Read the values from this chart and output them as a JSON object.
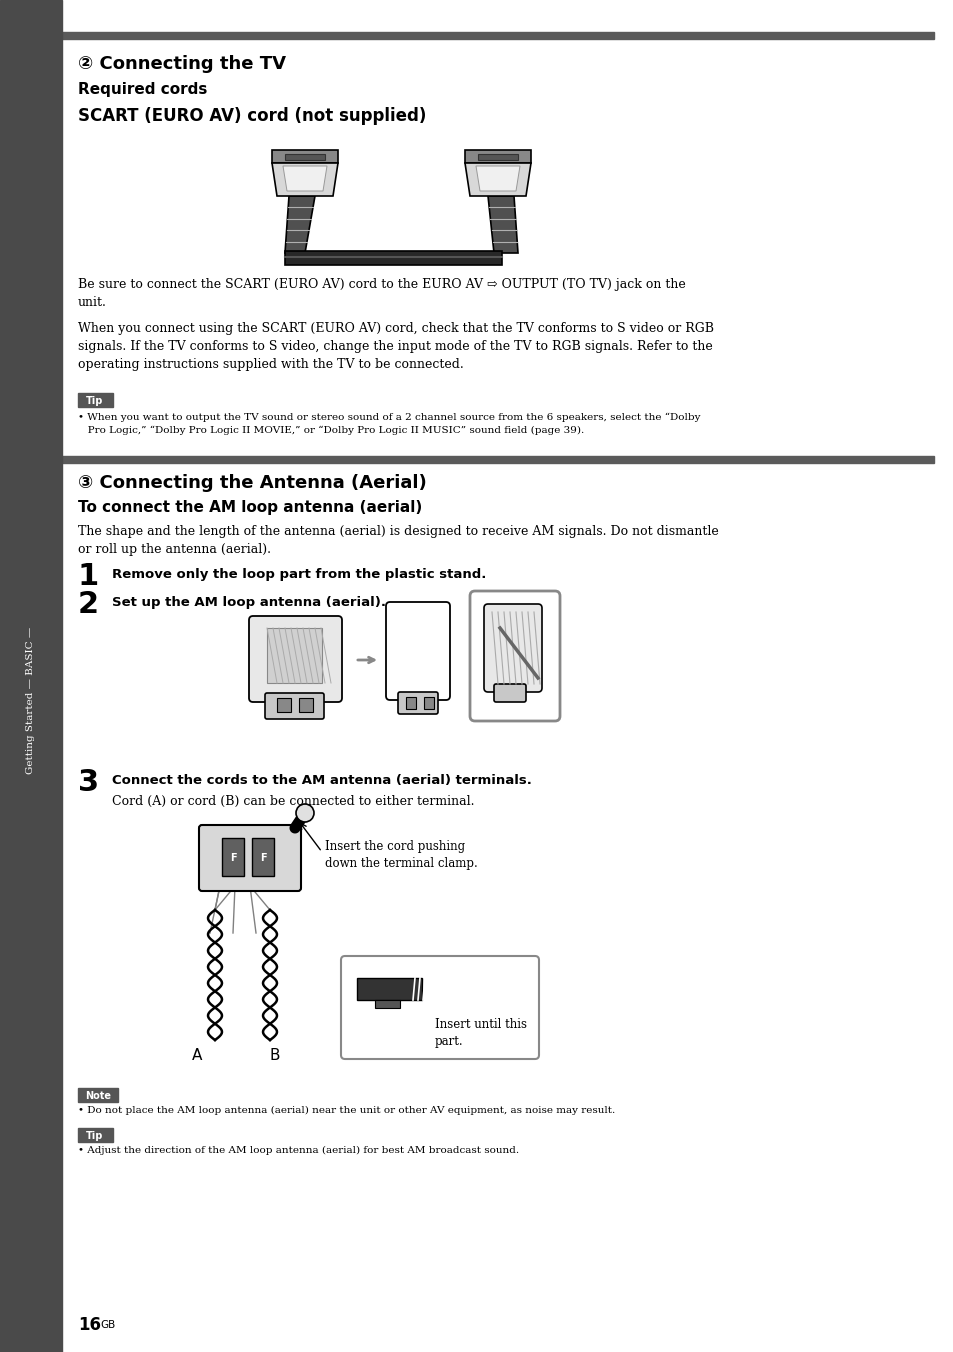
{
  "bg_color": "#ffffff",
  "sidebar_color": "#4a4a4a",
  "sidebar_text": "Getting Started — BASIC —",
  "top_bar_color": "#5a5a5a",
  "section2_title": "② Connecting the TV",
  "section2_subtitle1": "Required cords",
  "section2_subtitle2": "SCART (EURO AV) cord (not supplied)",
  "section2_para1": "Be sure to connect the SCART (EURO AV) cord to the EURO AV ⇨ OUTPUT (TO TV) jack on the\nunit.",
  "section2_para2": "When you connect using the SCART (EURO AV) cord, check that the TV conforms to S video or RGB\nsignals. If the TV conforms to S video, change the input mode of the TV to RGB signals. Refer to the\noperating instructions supplied with the TV to be connected.",
  "tip_label": "Tip",
  "tip_text": "• When you want to output the TV sound or stereo sound of a 2 channel source from the 6 speakers, select the “Dolby\n   Pro Logic,” “Dolby Pro Logic II MOVIE,” or “Dolby Pro Logic II MUSIC” sound field (page 39).",
  "section3_title": "③ Connecting the Antenna (Aerial)",
  "section3_subtitle": "To connect the AM loop antenna (aerial)",
  "section3_para1": "The shape and the length of the antenna (aerial) is designed to receive AM signals. Do not dismantle\nor roll up the antenna (aerial).",
  "step1_num": "1",
  "step1_text": "Remove only the loop part from the plastic stand.",
  "step2_num": "2",
  "step2_text": "Set up the AM loop antenna (aerial).",
  "step3_num": "3",
  "step3_text": "Connect the cords to the AM antenna (aerial) terminals.",
  "step3_sub": "Cord (A) or cord (B) can be connected to either terminal.",
  "insert_text1": "Insert the cord pushing\ndown the terminal clamp.",
  "insert_text2": "Insert until this\npart.",
  "note_label": "Note",
  "note_text": "• Do not place the AM loop antenna (aerial) near the unit or other AV equipment, as noise may result.",
  "tip2_label": "Tip",
  "tip2_text": "• Adjust the direction of the AM loop antenna (aerial) for best AM broadcast sound.",
  "page_num": "16",
  "page_suffix": "GB"
}
